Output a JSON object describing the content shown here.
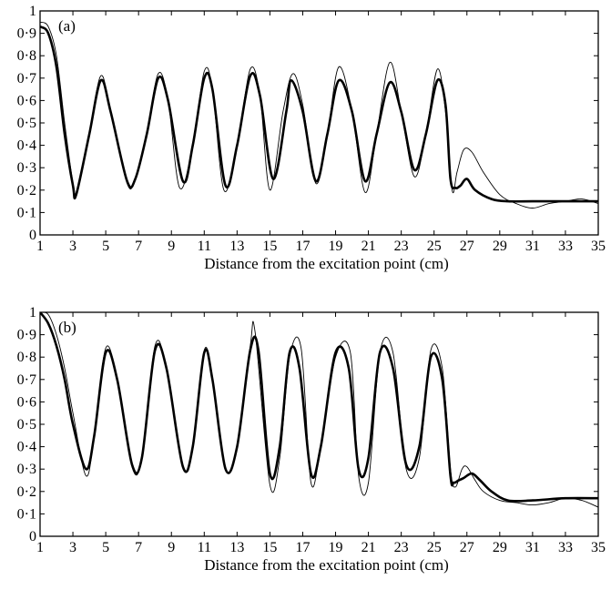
{
  "chart_data": [
    {
      "type": "line",
      "panel_label": "(a)",
      "xlabel": "Distance from the excitation point (cm)",
      "ylabel": "",
      "xlim": [
        1,
        35
      ],
      "ylim": [
        0,
        1
      ],
      "x_ticks": [
        "1",
        "3",
        "5",
        "7",
        "9",
        "11",
        "13",
        "15",
        "17",
        "19",
        "21",
        "23",
        "25",
        "27",
        "29",
        "31",
        "33",
        "35"
      ],
      "y_ticks": [
        "0",
        "0·1",
        "0·2",
        "0·3",
        "0·4",
        "0·5",
        "0·6",
        "0·7",
        "0·8",
        "0·9",
        "1"
      ],
      "grid": false,
      "series": [
        {
          "style": "thick",
          "x": [
            1,
            1.5,
            2,
            2.5,
            3,
            3.2,
            4,
            4.7,
            5.3,
            6.3,
            6.8,
            7.5,
            8.2,
            8.8,
            9.7,
            10.3,
            11,
            11.5,
            12.3,
            13,
            13.8,
            14.4,
            15.2,
            16,
            16.3,
            17,
            17.8,
            18.5,
            19.2,
            20,
            20.8,
            21.5,
            22.3,
            23,
            23.8,
            24.5,
            25.2,
            25.7,
            26,
            26.3,
            26.6,
            27,
            27.5,
            28.5,
            29.5,
            31,
            33,
            35
          ],
          "y": [
            0.93,
            0.9,
            0.75,
            0.45,
            0.22,
            0.18,
            0.45,
            0.69,
            0.55,
            0.24,
            0.25,
            0.45,
            0.7,
            0.6,
            0.24,
            0.4,
            0.7,
            0.65,
            0.22,
            0.4,
            0.71,
            0.62,
            0.25,
            0.55,
            0.69,
            0.55,
            0.24,
            0.45,
            0.69,
            0.55,
            0.24,
            0.45,
            0.68,
            0.55,
            0.29,
            0.45,
            0.69,
            0.58,
            0.25,
            0.21,
            0.22,
            0.25,
            0.2,
            0.16,
            0.15,
            0.15,
            0.15,
            0.15
          ]
        },
        {
          "style": "thin",
          "x": [
            1,
            1.5,
            2,
            2.5,
            3,
            3.2,
            4,
            4.7,
            5.3,
            6.3,
            6.8,
            7.5,
            8.2,
            8.8,
            9.5,
            10.3,
            11,
            11.5,
            12.2,
            13,
            13.8,
            14.4,
            15,
            15.8,
            16.4,
            17,
            17.8,
            18.5,
            19.2,
            20,
            20.8,
            21.5,
            22.3,
            23,
            23.8,
            24.5,
            25.2,
            25.7,
            26.1,
            26.4,
            26.8,
            27.3,
            28,
            29,
            30,
            31,
            32,
            33,
            34,
            35
          ],
          "y": [
            0.95,
            0.93,
            0.8,
            0.5,
            0.23,
            0.19,
            0.45,
            0.71,
            0.55,
            0.23,
            0.25,
            0.45,
            0.72,
            0.6,
            0.21,
            0.4,
            0.73,
            0.65,
            0.2,
            0.4,
            0.74,
            0.62,
            0.2,
            0.55,
            0.72,
            0.58,
            0.23,
            0.45,
            0.75,
            0.55,
            0.19,
            0.45,
            0.77,
            0.55,
            0.26,
            0.45,
            0.74,
            0.55,
            0.2,
            0.28,
            0.38,
            0.37,
            0.28,
            0.18,
            0.14,
            0.12,
            0.14,
            0.15,
            0.16,
            0.14
          ]
        }
      ]
    },
    {
      "type": "line",
      "panel_label": "(b)",
      "xlabel": "Distance from the excitation point (cm)",
      "ylabel": "",
      "xlim": [
        1,
        35
      ],
      "ylim": [
        0,
        1
      ],
      "x_ticks": [
        "1",
        "3",
        "5",
        "7",
        "9",
        "11",
        "13",
        "15",
        "17",
        "19",
        "21",
        "23",
        "25",
        "27",
        "29",
        "31",
        "33",
        "35"
      ],
      "y_ticks": [
        "0",
        "0·1",
        "0·2",
        "0·3",
        "0·4",
        "0·5",
        "0·6",
        "0·7",
        "0·8",
        "0·9",
        "1"
      ],
      "grid": false,
      "series": [
        {
          "style": "thick",
          "x": [
            1,
            1.5,
            2,
            2.5,
            3,
            3.8,
            4.3,
            5,
            5.7,
            6.6,
            7.2,
            8,
            8.7,
            9.7,
            10.3,
            11,
            11.5,
            12.3,
            13,
            13.8,
            14.3,
            15,
            15.6,
            16.2,
            16.8,
            17.5,
            18.1,
            19,
            19.8,
            20.4,
            21,
            21.7,
            22.5,
            23.3,
            24.1,
            24.8,
            25.5,
            26,
            26.2,
            26.5,
            26.8,
            27.3,
            27.8,
            28.5,
            29.5,
            31,
            33,
            35
          ],
          "y": [
            1.0,
            0.95,
            0.85,
            0.7,
            0.5,
            0.3,
            0.45,
            0.82,
            0.7,
            0.32,
            0.35,
            0.83,
            0.75,
            0.31,
            0.4,
            0.82,
            0.7,
            0.3,
            0.4,
            0.83,
            0.83,
            0.28,
            0.4,
            0.82,
            0.75,
            0.28,
            0.4,
            0.82,
            0.75,
            0.3,
            0.35,
            0.82,
            0.75,
            0.32,
            0.4,
            0.8,
            0.7,
            0.27,
            0.24,
            0.25,
            0.26,
            0.28,
            0.25,
            0.2,
            0.16,
            0.16,
            0.17,
            0.17
          ]
        },
        {
          "style": "thin",
          "x": [
            1,
            1.5,
            2,
            2.5,
            3,
            3.8,
            4.3,
            5,
            5.7,
            6.6,
            7.2,
            8,
            8.7,
            9.7,
            10.3,
            11,
            11.5,
            12.3,
            13,
            13.8,
            14.1,
            15,
            15.6,
            16.2,
            16.9,
            17.5,
            18.1,
            19,
            19.9,
            20.4,
            21,
            21.7,
            22.5,
            23.3,
            24.1,
            24.8,
            25.5,
            26,
            26.3,
            26.7,
            27,
            27.5,
            28,
            29,
            30,
            31,
            32,
            33,
            34,
            35
          ],
          "y": [
            1.0,
            0.99,
            0.9,
            0.75,
            0.55,
            0.27,
            0.45,
            0.84,
            0.7,
            0.31,
            0.35,
            0.85,
            0.75,
            0.31,
            0.4,
            0.83,
            0.7,
            0.3,
            0.4,
            0.85,
            0.91,
            0.23,
            0.35,
            0.8,
            0.84,
            0.24,
            0.4,
            0.8,
            0.82,
            0.27,
            0.24,
            0.82,
            0.82,
            0.3,
            0.35,
            0.83,
            0.75,
            0.3,
            0.22,
            0.3,
            0.31,
            0.25,
            0.2,
            0.16,
            0.15,
            0.14,
            0.15,
            0.17,
            0.16,
            0.13
          ]
        }
      ]
    }
  ]
}
